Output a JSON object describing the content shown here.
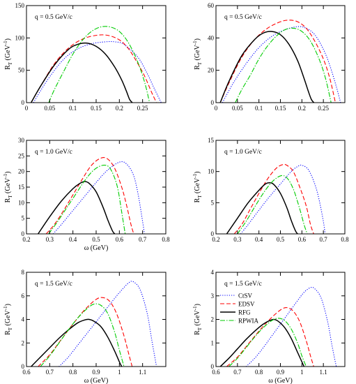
{
  "series_styles": [
    {
      "name": "CtSV",
      "color": "#0000ff",
      "dash": "1.2,2",
      "width": 1.1
    },
    {
      "name": "EDSV",
      "color": "#ff0000",
      "dash": "6,3",
      "width": 1.1
    },
    {
      "name": "RFG",
      "color": "#000000",
      "dash": "",
      "width": 1.5
    },
    {
      "name": "RPWIA",
      "color": "#00cc00",
      "dash": "7,2,1.5,2",
      "width": 1.1
    }
  ],
  "chart_data": [
    {
      "type": "line",
      "panel_label": "q = 0.5 GeV/c",
      "xlabel": "",
      "ylabel": "R_T (GeV^-1)",
      "xlim": [
        0,
        0.3
      ],
      "ylim": [
        0,
        150
      ],
      "xticks": [
        0,
        0.05,
        0.1,
        0.15,
        0.2,
        0.25
      ],
      "xtick_labels": [
        "0",
        "0.05",
        "0.1",
        "0.15",
        "0.2",
        "0.25"
      ],
      "yticks": [
        0,
        50,
        100,
        150
      ],
      "ytick_labels": [
        "0",
        "50",
        "100",
        "150"
      ],
      "legend": null,
      "series": [
        {
          "name": "CtSV",
          "x": [
            0.015,
            0.03,
            0.05,
            0.08,
            0.11,
            0.14,
            0.17,
            0.19,
            0.21,
            0.24,
            0.26,
            0.275,
            0.29
          ],
          "y": [
            0,
            18,
            40,
            67,
            83,
            91,
            94,
            94,
            90,
            70,
            45,
            22,
            0
          ]
        },
        {
          "name": "EDSV",
          "x": [
            0.01,
            0.03,
            0.06,
            0.09,
            0.12,
            0.15,
            0.175,
            0.2,
            0.22,
            0.24,
            0.255,
            0.27,
            0.28
          ],
          "y": [
            0,
            25,
            60,
            84,
            98,
            104,
            104,
            97,
            83,
            60,
            40,
            15,
            0
          ]
        },
        {
          "name": "RFG",
          "x": [
            0.01,
            0.03,
            0.06,
            0.09,
            0.11,
            0.13,
            0.15,
            0.17,
            0.19,
            0.205,
            0.215,
            0.222,
            0.228
          ],
          "y": [
            0,
            25,
            58,
            82,
            90,
            92,
            87,
            75,
            55,
            35,
            18,
            5,
            0
          ]
        },
        {
          "name": "RPWIA",
          "x": [
            0.048,
            0.06,
            0.08,
            0.1,
            0.12,
            0.14,
            0.16,
            0.18,
            0.2,
            0.22,
            0.24,
            0.255,
            0.265
          ],
          "y": [
            0,
            20,
            48,
            75,
            96,
            110,
            117,
            117,
            110,
            92,
            62,
            30,
            0
          ]
        }
      ]
    },
    {
      "type": "line",
      "panel_label": "q = 0.5 GeV/c",
      "xlabel": "",
      "ylabel": "R_T (GeV^-1)",
      "xlim": [
        0,
        0.3
      ],
      "ylim": [
        0,
        60
      ],
      "xticks": [
        0,
        0.05,
        0.1,
        0.15,
        0.2,
        0.25
      ],
      "xtick_labels": [
        "0",
        "0.05",
        "0.1",
        "0.15",
        "0.2",
        "0.25"
      ],
      "yticks": [
        0,
        20,
        40,
        60
      ],
      "ytick_labels": [
        "0",
        "20",
        "40",
        "60"
      ],
      "legend": null,
      "series": [
        {
          "name": "CtSV",
          "x": [
            0.015,
            0.04,
            0.07,
            0.1,
            0.13,
            0.16,
            0.19,
            0.21,
            0.23,
            0.25,
            0.265,
            0.28,
            0.29
          ],
          "y": [
            0,
            12,
            24,
            34,
            41,
            45,
            47,
            46,
            42,
            33,
            23,
            10,
            0
          ]
        },
        {
          "name": "EDSV",
          "x": [
            0.01,
            0.03,
            0.06,
            0.09,
            0.12,
            0.15,
            0.17,
            0.19,
            0.21,
            0.23,
            0.25,
            0.265,
            0.278
          ],
          "y": [
            0,
            12,
            28,
            39,
            46,
            50,
            51,
            50,
            46,
            38,
            27,
            15,
            0
          ]
        },
        {
          "name": "RFG",
          "x": [
            0.01,
            0.03,
            0.06,
            0.09,
            0.11,
            0.13,
            0.15,
            0.17,
            0.19,
            0.205,
            0.215,
            0.222,
            0.228
          ],
          "y": [
            0,
            13,
            29,
            39,
            43,
            44,
            42,
            36,
            26,
            15,
            7,
            2,
            0
          ]
        },
        {
          "name": "RPWIA",
          "x": [
            0.045,
            0.06,
            0.08,
            0.1,
            0.12,
            0.14,
            0.16,
            0.18,
            0.2,
            0.22,
            0.24,
            0.255,
            0.268
          ],
          "y": [
            0,
            8,
            17,
            27,
            35,
            41,
            45,
            46,
            44,
            38,
            27,
            15,
            0
          ]
        }
      ]
    },
    {
      "type": "line",
      "panel_label": "q = 1.0 GeV/c",
      "xlabel": "ω (GeV)",
      "ylabel": "R_T (GeV^-1)",
      "xlim": [
        0.2,
        0.8
      ],
      "ylim": [
        0,
        30
      ],
      "xticks": [
        0.2,
        0.3,
        0.4,
        0.5,
        0.6,
        0.7,
        0.8
      ],
      "xtick_labels": [
        "0.2",
        "0.3",
        "0.4",
        "0.5",
        "0.6",
        "0.7",
        "0.8"
      ],
      "yticks": [
        0,
        5,
        10,
        15,
        20,
        25,
        30
      ],
      "ytick_labels": [
        "0",
        "5",
        "10",
        "15",
        "20",
        "25",
        "30"
      ],
      "legend": null,
      "series": [
        {
          "name": "CtSV",
          "x": [
            0.315,
            0.35,
            0.4,
            0.45,
            0.5,
            0.55,
            0.6,
            0.63,
            0.66,
            0.68,
            0.7,
            0.708
          ],
          "y": [
            0,
            3,
            7.5,
            12,
            16.5,
            20.5,
            23,
            22.5,
            19,
            13,
            4,
            0
          ]
        },
        {
          "name": "EDSV",
          "x": [
            0.285,
            0.32,
            0.36,
            0.4,
            0.44,
            0.48,
            0.52,
            0.55,
            0.58,
            0.61,
            0.63,
            0.65,
            0.662
          ],
          "y": [
            0,
            3,
            7.5,
            12.5,
            17.5,
            22,
            24.3,
            24,
            21,
            15,
            9.5,
            3,
            0
          ]
        },
        {
          "name": "RFG",
          "x": [
            0.25,
            0.3,
            0.35,
            0.4,
            0.43,
            0.45,
            0.47,
            0.5,
            0.53,
            0.55,
            0.57,
            0.58
          ],
          "y": [
            0,
            5.5,
            10.5,
            14.5,
            16.2,
            16.8,
            16.2,
            13.5,
            8.5,
            4.5,
            1,
            0
          ]
        },
        {
          "name": "RPWIA",
          "x": [
            0.295,
            0.33,
            0.37,
            0.41,
            0.45,
            0.49,
            0.53,
            0.56,
            0.59,
            0.61,
            0.625
          ],
          "y": [
            0,
            3.5,
            8,
            12.5,
            17,
            20.5,
            22,
            21,
            15.5,
            7,
            0
          ]
        }
      ]
    },
    {
      "type": "line",
      "panel_label": "q = 1.0 GeV/c",
      "xlabel": "",
      "ylabel": "R_T (GeV^-1)",
      "xlim": [
        0.2,
        0.8
      ],
      "ylim": [
        0,
        15
      ],
      "xticks": [
        0.2,
        0.3,
        0.4,
        0.5,
        0.6,
        0.7,
        0.8
      ],
      "xtick_labels": [
        "0.2",
        "0.3",
        "0.4",
        "0.5",
        "0.6",
        "0.7",
        "0.8"
      ],
      "yticks": [
        0,
        5,
        10,
        15
      ],
      "ytick_labels": [
        "0",
        "5",
        "10",
        "15"
      ],
      "legend": null,
      "series": [
        {
          "name": "CtSV",
          "x": [
            0.315,
            0.35,
            0.4,
            0.45,
            0.5,
            0.55,
            0.58,
            0.6,
            0.63,
            0.66,
            0.68,
            0.7,
            0.708
          ],
          "y": [
            0,
            1.5,
            3.8,
            6,
            8,
            10,
            10.8,
            11,
            10.3,
            8,
            5.5,
            2,
            0
          ]
        },
        {
          "name": "EDSV",
          "x": [
            0.285,
            0.32,
            0.36,
            0.4,
            0.44,
            0.48,
            0.51,
            0.53,
            0.56,
            0.59,
            0.62,
            0.64,
            0.655
          ],
          "y": [
            0,
            1.5,
            4,
            6.5,
            8.8,
            10.5,
            11.1,
            11,
            10,
            7.5,
            4.5,
            1.5,
            0
          ]
        },
        {
          "name": "RFG",
          "x": [
            0.25,
            0.3,
            0.35,
            0.4,
            0.43,
            0.45,
            0.47,
            0.5,
            0.53,
            0.55,
            0.57,
            0.58
          ],
          "y": [
            0,
            2.5,
            5,
            7,
            8,
            8.2,
            7.9,
            6.5,
            4.2,
            2.2,
            0.5,
            0
          ]
        },
        {
          "name": "RPWIA",
          "x": [
            0.3,
            0.34,
            0.38,
            0.42,
            0.46,
            0.5,
            0.53,
            0.56,
            0.59,
            0.61,
            0.625
          ],
          "y": [
            0,
            2,
            4.3,
            6.5,
            8.3,
            9.3,
            9,
            7.2,
            4,
            1.5,
            0
          ]
        }
      ]
    },
    {
      "type": "line",
      "panel_label": "q = 1.5 GeV/c",
      "xlabel": "ω (GeV)",
      "ylabel": "R_T (GeV^-1)",
      "xlim": [
        0.6,
        1.2
      ],
      "ylim": [
        0,
        8
      ],
      "xticks": [
        0.6,
        0.7,
        0.8,
        0.9,
        1.0,
        1.1
      ],
      "xtick_labels": [
        "0.6",
        "0.7",
        "0.8",
        "0.9",
        "1",
        "1.1"
      ],
      "yticks": [
        0,
        2,
        4,
        6,
        8
      ],
      "ytick_labels": [
        "0",
        "2",
        "4",
        "6",
        "8"
      ],
      "legend": null,
      "series": [
        {
          "name": "CtSV",
          "x": [
            0.74,
            0.78,
            0.82,
            0.86,
            0.9,
            0.94,
            0.98,
            1.01,
            1.04,
            1.06,
            1.09,
            1.12,
            1.14,
            1.16
          ],
          "y": [
            0,
            0.8,
            1.8,
            2.8,
            3.8,
            4.8,
            5.8,
            6.5,
            7.1,
            7.2,
            6.5,
            4.5,
            2.2,
            0
          ]
        },
        {
          "name": "EDSV",
          "x": [
            0.65,
            0.7,
            0.75,
            0.8,
            0.85,
            0.9,
            0.93,
            0.96,
            0.99,
            1.02,
            1.04,
            1.055
          ],
          "y": [
            0,
            1,
            2.3,
            3.6,
            4.8,
            5.7,
            5.85,
            5.5,
            4.4,
            2.6,
            1.1,
            0
          ]
        },
        {
          "name": "RFG",
          "x": [
            0.62,
            0.66,
            0.7,
            0.74,
            0.78,
            0.82,
            0.85,
            0.87,
            0.89,
            0.92,
            0.95,
            0.98,
            1.0,
            1.01
          ],
          "y": [
            0,
            0.8,
            1.6,
            2.4,
            3.1,
            3.7,
            3.95,
            4,
            3.85,
            3.4,
            2.5,
            1.3,
            0.4,
            0
          ]
        },
        {
          "name": "RPWIA",
          "x": [
            0.66,
            0.7,
            0.74,
            0.78,
            0.82,
            0.86,
            0.89,
            0.92,
            0.95,
            0.98,
            1.0,
            1.02
          ],
          "y": [
            0,
            0.9,
            2,
            3.1,
            4.1,
            4.9,
            5.3,
            5.2,
            4.5,
            2.9,
            1.4,
            0
          ]
        }
      ]
    },
    {
      "type": "line",
      "panel_label": "q = 1.5 GeV/c",
      "xlabel": "ω (GeV)",
      "ylabel": "R_T (GeV^-1)",
      "xlim": [
        0.6,
        1.2
      ],
      "ylim": [
        0,
        4
      ],
      "xticks": [
        0.6,
        0.7,
        0.8,
        0.9,
        1.0,
        1.1
      ],
      "xtick_labels": [
        "0.6",
        "0.7",
        "0.8",
        "0.9",
        "1",
        "1.1"
      ],
      "yticks": [
        0,
        1,
        2,
        3,
        4
      ],
      "ytick_labels": [
        "0",
        "1",
        "2",
        "3",
        "4"
      ],
      "legend": {
        "position": "top-left",
        "entries": [
          "CtSV",
          "EDSV",
          "RFG",
          "RPWIA"
        ]
      },
      "series": [
        {
          "name": "CtSV",
          "x": [
            0.74,
            0.78,
            0.82,
            0.86,
            0.9,
            0.94,
            0.98,
            1.01,
            1.04,
            1.06,
            1.09,
            1.12,
            1.14,
            1.16
          ],
          "y": [
            0,
            0.35,
            0.8,
            1.3,
            1.8,
            2.3,
            2.8,
            3.15,
            3.35,
            3.3,
            2.9,
            1.9,
            0.9,
            0
          ]
        },
        {
          "name": "EDSV",
          "x": [
            0.65,
            0.7,
            0.75,
            0.8,
            0.85,
            0.9,
            0.93,
            0.96,
            0.99,
            1.02,
            1.04,
            1.055
          ],
          "y": [
            0,
            0.4,
            0.95,
            1.5,
            2,
            2.4,
            2.5,
            2.35,
            1.9,
            1.1,
            0.45,
            0
          ]
        },
        {
          "name": "RFG",
          "x": [
            0.62,
            0.66,
            0.7,
            0.74,
            0.78,
            0.82,
            0.85,
            0.87,
            0.89,
            0.92,
            0.95,
            0.98,
            1.0,
            1.01
          ],
          "y": [
            0,
            0.35,
            0.75,
            1.15,
            1.5,
            1.8,
            1.95,
            2,
            1.92,
            1.65,
            1.2,
            0.6,
            0.2,
            0
          ]
        },
        {
          "name": "RPWIA",
          "x": [
            0.66,
            0.7,
            0.74,
            0.78,
            0.82,
            0.86,
            0.89,
            0.92,
            0.95,
            0.98,
            1.0,
            1.02
          ],
          "y": [
            0,
            0.35,
            0.8,
            1.25,
            1.65,
            1.95,
            2.05,
            1.95,
            1.6,
            1,
            0.45,
            0
          ]
        }
      ]
    }
  ]
}
